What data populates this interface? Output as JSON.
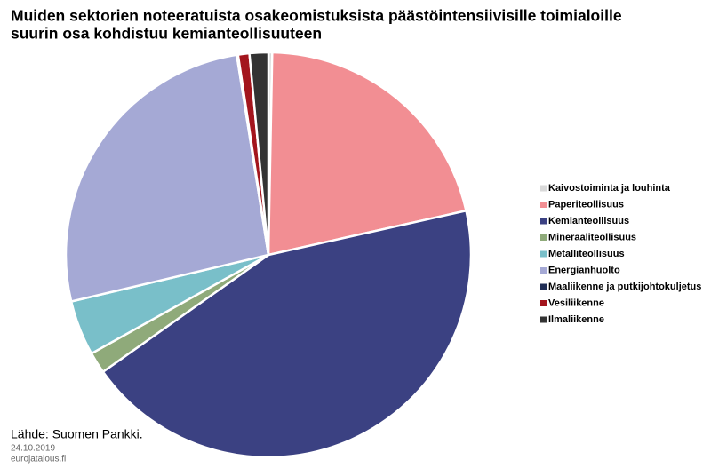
{
  "chart_data": {
    "type": "pie",
    "title": [
      "Muiden sektorien noteeratuista osakeomistuksista päästöintensiivisille toimialoille",
      "suurin osa kohdistuu kemianteollisuuteen"
    ],
    "categories": [
      "Kaivostoiminta ja louhinta",
      "Paperiteollisuus",
      "Kemianteollisuus",
      "Mineraaliteollisuus",
      "Metalliteollisuus",
      "Energianhuolto",
      "Maaliikenne ja putkijohtokuljetus",
      "Vesiliikenne",
      "Ilmaliikenne"
    ],
    "values": [
      0.3,
      21.2,
      43.7,
      1.7,
      4.4,
      26.2,
      0.1,
      0.9,
      1.5
    ],
    "colors": [
      "#d9d9d9",
      "#f28e93",
      "#3b4182",
      "#8faa7a",
      "#79bfc9",
      "#a5a9d5",
      "#1f2d55",
      "#a3151d",
      "#333333"
    ],
    "source": "Lähde: Suomen Pankki.",
    "date": "24.10.2019",
    "site": "eurojatalous.fi"
  }
}
